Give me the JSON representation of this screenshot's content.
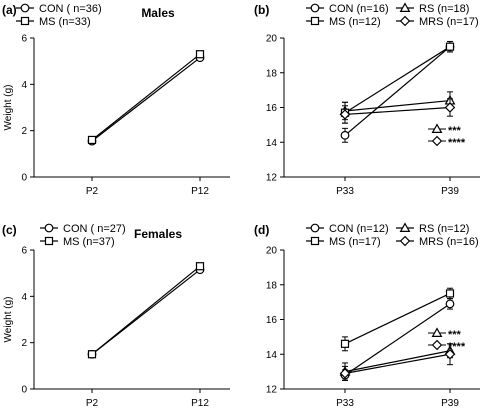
{
  "chart_data": [
    {
      "type": "line",
      "panel": "(a)",
      "title": "Males",
      "ylabel": "Weight (g)",
      "ylim": [
        0,
        6
      ],
      "yticks": [
        "0",
        "2",
        "4",
        "6"
      ],
      "x": [
        "P2",
        "P12"
      ],
      "series": [
        {
          "name": "CON ( n=36)",
          "marker": "circle",
          "values": [
            1.55,
            5.15
          ],
          "err": [
            0.05,
            0.1
          ]
        },
        {
          "name": "MS (n=33)",
          "marker": "square",
          "values": [
            1.6,
            5.3
          ],
          "err": [
            0.05,
            0.1
          ]
        }
      ],
      "annotations": []
    },
    {
      "type": "line",
      "panel": "(b)",
      "title": "",
      "ylabel": "",
      "ylim": [
        12,
        20
      ],
      "yticks": [
        "12",
        "14",
        "16",
        "18",
        "20"
      ],
      "x": [
        "P33",
        "P39"
      ],
      "series": [
        {
          "name": "CON (n=16)",
          "marker": "circle",
          "values": [
            14.4,
            19.5
          ],
          "err": [
            0.4,
            0.3
          ]
        },
        {
          "name": "RS (n=18)",
          "marker": "triangle",
          "values": [
            15.8,
            16.4
          ],
          "err": [
            0.5,
            0.5
          ]
        },
        {
          "name": "MS (n=12)",
          "marker": "square",
          "values": [
            15.7,
            19.5
          ],
          "err": [
            0.6,
            0.3
          ]
        },
        {
          "name": "MRS (n=17)",
          "marker": "diamond",
          "values": [
            15.6,
            16.0
          ],
          "err": [
            0.5,
            0.5
          ]
        }
      ],
      "annotations": [
        {
          "marker": "triangle",
          "text": "***"
        },
        {
          "marker": "diamond",
          "text": "****"
        }
      ]
    },
    {
      "type": "line",
      "panel": "(c)",
      "title": "Females",
      "ylabel": "Weight (g)",
      "ylim": [
        0,
        6
      ],
      "yticks": [
        "0",
        "2",
        "4",
        "6"
      ],
      "x": [
        "P2",
        "P12"
      ],
      "series": [
        {
          "name": "CON ( n=27)",
          "marker": "circle",
          "values": [
            1.5,
            5.15
          ],
          "err": [
            0.05,
            0.1
          ]
        },
        {
          "name": "MS (n=37)",
          "marker": "square",
          "values": [
            1.5,
            5.3
          ],
          "err": [
            0.05,
            0.1
          ]
        }
      ],
      "annotations": []
    },
    {
      "type": "line",
      "panel": "(d)",
      "title": "",
      "ylabel": "",
      "ylim": [
        12,
        20
      ],
      "yticks": [
        "12",
        "14",
        "16",
        "18",
        "20"
      ],
      "x": [
        "P33",
        "P39"
      ],
      "series": [
        {
          "name": "CON (n=12)",
          "marker": "circle",
          "values": [
            12.8,
            16.9
          ],
          "err": [
            0.3,
            0.3
          ]
        },
        {
          "name": "RS (n=12)",
          "marker": "triangle",
          "values": [
            13.0,
            14.2
          ],
          "err": [
            0.5,
            0.4
          ]
        },
        {
          "name": "MS (n=17)",
          "marker": "square",
          "values": [
            14.6,
            17.5
          ],
          "err": [
            0.4,
            0.3
          ]
        },
        {
          "name": "MRS (n=16)",
          "marker": "diamond",
          "values": [
            12.9,
            14.0
          ],
          "err": [
            0.4,
            0.6
          ]
        }
      ],
      "annotations": [
        {
          "marker": "triangle",
          "text": "***"
        },
        {
          "marker": "diamond",
          "text": "****"
        }
      ]
    }
  ]
}
